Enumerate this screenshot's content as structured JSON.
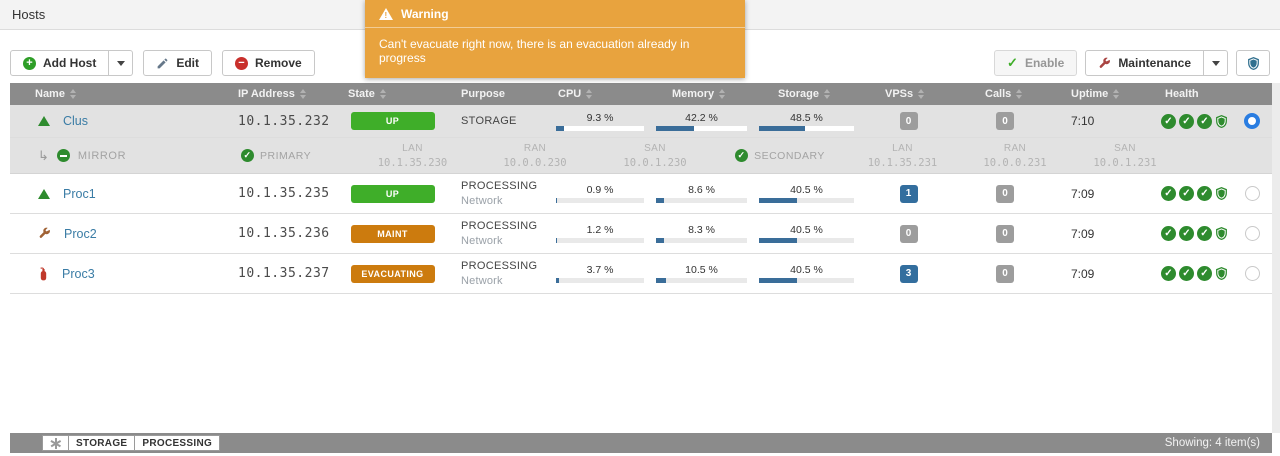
{
  "page": {
    "title": "Hosts"
  },
  "toast": {
    "icon": "warning-triangle-icon",
    "title": "Warning",
    "message": "Can't evacuate right now, there is an evacuation already in progress",
    "bg": "#e8a33e"
  },
  "toolbar": {
    "add_host_label": "Add Host",
    "edit_label": "Edit",
    "remove_label": "Remove",
    "enable_label": "Enable",
    "maintenance_label": "Maintenance"
  },
  "table": {
    "headers": {
      "name": "Name",
      "ip": "IP Address",
      "state": "State",
      "purpose": "Purpose",
      "cpu": "CPU",
      "memory": "Memory",
      "storage": "Storage",
      "vpss": "VPSs",
      "calls": "Calls",
      "uptime": "Uptime",
      "health": "Health"
    },
    "rows": [
      {
        "icon": "host-up-icon",
        "name": "Clus",
        "ip": "10.1.35.232",
        "state": "UP",
        "purpose": "STORAGE",
        "purpose_sub": "",
        "cpu_label": "9.3 %",
        "cpu_pct": 9.3,
        "memory_label": "42.2 %",
        "memory_pct": 42.2,
        "storage_label": "48.5 %",
        "storage_pct": 48.5,
        "vpss": "0",
        "calls": "0",
        "uptime": "7:10",
        "selected": true
      },
      {
        "icon": "host-up-icon",
        "name": "Proc1",
        "ip": "10.1.35.235",
        "state": "UP",
        "purpose": "PROCESSING",
        "purpose_sub": "Network",
        "cpu_label": "0.9 %",
        "cpu_pct": 0.9,
        "memory_label": "8.6 %",
        "memory_pct": 8.6,
        "storage_label": "40.5 %",
        "storage_pct": 40.5,
        "vpss": "1",
        "calls": "0",
        "uptime": "7:09",
        "selected": false
      },
      {
        "icon": "maintenance-wrench-icon",
        "name": "Proc2",
        "ip": "10.1.35.236",
        "state": "MAINT",
        "purpose": "PROCESSING",
        "purpose_sub": "Network",
        "cpu_label": "1.2 %",
        "cpu_pct": 1.2,
        "memory_label": "8.3 %",
        "memory_pct": 8.3,
        "storage_label": "40.5 %",
        "storage_pct": 40.5,
        "vpss": "0",
        "calls": "0",
        "uptime": "7:09",
        "selected": false
      },
      {
        "icon": "evacuating-extinguisher-icon",
        "name": "Proc3",
        "ip": "10.1.35.237",
        "state": "EVACUATING",
        "purpose": "PROCESSING",
        "purpose_sub": "Network",
        "cpu_label": "3.7 %",
        "cpu_pct": 3.7,
        "memory_label": "10.5 %",
        "memory_pct": 10.5,
        "storage_label": "40.5 %",
        "storage_pct": 40.5,
        "vpss": "3",
        "calls": "0",
        "uptime": "7:09",
        "selected": false
      }
    ],
    "mirror": {
      "label": "MIRROR",
      "primary": "PRIMARY",
      "secondary": "SECONDARY",
      "lan": "LAN",
      "ran": "RAN",
      "san": "SAN",
      "primary_lan": "10.1.35.230",
      "primary_ran": "10.0.0.230",
      "primary_san": "10.0.1.230",
      "secondary_lan": "10.1.35.231",
      "secondary_ran": "10.0.0.231",
      "secondary_san": "10.0.1.231"
    }
  },
  "footer": {
    "filter_all_icon": "asterisk-icon",
    "filter_storage": "STORAGE",
    "filter_processing": "PROCESSING",
    "showing": "Showing: 4 item(s)"
  },
  "colors": {
    "state_up_green": "#3fae29",
    "state_warn_orange": "#cc7b0e",
    "bar_blue": "#3a6d99",
    "badge_blue": "#336e9e",
    "toast_orange": "#e8a33e",
    "header_grey": "#8b8b8b",
    "link_blue": "#3a7ca5",
    "health_green": "#2e8b2e",
    "radio_blue": "#2a7de1"
  }
}
